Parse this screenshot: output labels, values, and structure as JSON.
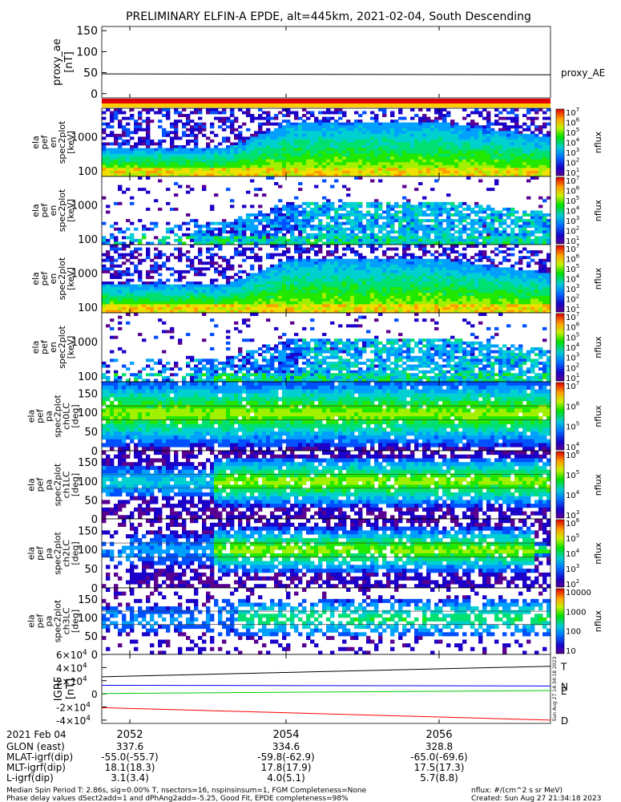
{
  "title": "PRELIMINARY ELFIN-A EPDE, alt=445km, 2021-02-04, South Descending",
  "chart_data": [
    {
      "type": "line",
      "panel": "proxy_ae",
      "ylabel": "proxy_ae [nT]",
      "yticks": [
        "150",
        "100",
        "50",
        "0"
      ],
      "ylim": [
        -10,
        160
      ],
      "series": [
        {
          "name": "proxy_AE",
          "x": [
            "20:51:00",
            "20:57:40"
          ],
          "values": [
            47,
            45
          ]
        }
      ]
    },
    {
      "type": "heatmap",
      "panel": "ela_pef_en_spec2plot_omni",
      "ylabel": [
        "ela",
        "pef",
        "en",
        "spec2plot",
        "[keV]"
      ],
      "yticks": [
        "1000",
        "100"
      ],
      "yscale": "log",
      "colorbar": {
        "label": "nflux",
        "ticks": [
          "10^7",
          "10^6",
          "10^5",
          "10^4",
          "10^3",
          "10^2",
          "10^1"
        ]
      }
    },
    {
      "type": "heatmap",
      "panel": "ela_pef_en_spec2plot_para",
      "ylabel": [
        "ela",
        "pef",
        "en",
        "spec2plot",
        "[keV]"
      ],
      "yticks": [
        "1000",
        "100"
      ],
      "yscale": "log",
      "colorbar": {
        "label": "nflux",
        "ticks": [
          "10^7",
          "10^6",
          "10^5",
          "10^4",
          "10^3",
          "10^2",
          "10^1"
        ]
      }
    },
    {
      "type": "heatmap",
      "panel": "ela_pef_en_spec2plot_perp",
      "ylabel": [
        "ela",
        "pef",
        "en",
        "spec2plot",
        "[keV]"
      ],
      "yticks": [
        "1000",
        "100"
      ],
      "yscale": "log",
      "colorbar": {
        "label": "nflux",
        "ticks": [
          "10^7",
          "10^6",
          "10^5",
          "10^4",
          "10^3",
          "10^2",
          "10^1"
        ]
      }
    },
    {
      "type": "heatmap",
      "panel": "ela_pef_en_spec2plot_anti",
      "ylabel": [
        "ela",
        "pef",
        "en",
        "spec2plot",
        "[keV]"
      ],
      "yticks": [
        "1000",
        "100"
      ],
      "yscale": "log",
      "colorbar": {
        "label": "nflux",
        "ticks": [
          "10^7",
          "10^6",
          "10^5",
          "10^4",
          "10^3",
          "10^2",
          "10^1"
        ]
      }
    },
    {
      "type": "heatmap",
      "panel": "ela_pef_pa_spec2plot_ch0LC",
      "ylabel": [
        "ela",
        "pef",
        "pa",
        "spec2plot",
        "ch0LC",
        "[deg]"
      ],
      "yticks": [
        "150",
        "100",
        "50",
        "0"
      ],
      "colorbar": {
        "label": "nflux",
        "ticks": [
          "10^7",
          "10^6",
          "10^5",
          "10^4"
        ]
      }
    },
    {
      "type": "heatmap",
      "panel": "ela_pef_pa_spec2plot_ch1LC",
      "ylabel": [
        "ela",
        "pef",
        "pa",
        "spec2plot",
        "ch1LC",
        "[deg]"
      ],
      "yticks": [
        "150",
        "100",
        "50",
        "0"
      ],
      "colorbar": {
        "label": "nflux",
        "ticks": [
          "10^6",
          "10^5",
          "10^4",
          "10^3"
        ]
      }
    },
    {
      "type": "heatmap",
      "panel": "ela_pef_pa_spec2plot_ch2LC",
      "ylabel": [
        "ela",
        "pef",
        "pa",
        "spec2plot",
        "ch2LC",
        "[deg]"
      ],
      "yticks": [
        "150",
        "100",
        "50",
        "0"
      ],
      "colorbar": {
        "label": "nflux",
        "ticks": [
          "10^6",
          "10^5",
          "10^4",
          "10^3",
          "10^2"
        ]
      }
    },
    {
      "type": "heatmap",
      "panel": "ela_pef_pa_spec2plot_ch3LC",
      "ylabel": [
        "ela",
        "pef",
        "pa",
        "spec2plot",
        "ch3LC",
        "[deg]"
      ],
      "yticks": [
        "150",
        "100",
        "50",
        "0"
      ],
      "colorbar": {
        "label": "nflux",
        "ticks": [
          "10000",
          "1000",
          "100",
          "10"
        ]
      }
    },
    {
      "type": "line",
      "panel": "IGRF",
      "ylabel": "IGRF [nT]",
      "yticks": [
        "6×10^4",
        "4×10^4",
        "2×10^4",
        "0",
        "-2×10^4",
        "-4×10^4"
      ],
      "ylim": [
        -45000,
        60000
      ],
      "series": [
        {
          "name": "T",
          "x": [
            "20:51:00",
            "20:57:40"
          ],
          "values": [
            26000,
            42000
          ]
        },
        {
          "name": "N",
          "x": [
            "20:51:00",
            "20:57:40"
          ],
          "values": [
            13000,
            12000
          ]
        },
        {
          "name": "E",
          "x": [
            "20:51:00",
            "20:57:40"
          ],
          "values": [
            500,
            5000
          ]
        },
        {
          "name": "D",
          "x": [
            "20:51:00",
            "20:57:40"
          ],
          "values": [
            -21000,
            -40000
          ]
        }
      ],
      "side_note": "Sun Aug 27 14:34:18 2023"
    }
  ],
  "xaxis": {
    "date_label": "2021 Feb 04",
    "ticks": [
      "2052",
      "2054",
      "2056"
    ],
    "rows": [
      {
        "label": "GLON (east)",
        "values": [
          "337.6",
          "334.6",
          "328.8"
        ]
      },
      {
        "label": "MLAT-igrf(dip)",
        "values": [
          "-55.0(-55.7)",
          "-59.8(-62.9)",
          "-65.0(-69.6)"
        ]
      },
      {
        "label": "MLT-igrf(dip)",
        "values": [
          "18.1(18.3)",
          "17.8(17.9)",
          "17.5(17.3)"
        ]
      },
      {
        "label": "L-igrf(dip)",
        "values": [
          "3.1(3.4)",
          "4.0(5.1)",
          "5.7(8.8)"
        ]
      }
    ]
  },
  "footer": {
    "line1": "Median Spin Period T: 2.86s, sig=0.00% T, nsectors=16, nspinsinsum=1, FGM Completeness=None",
    "line2": "Phase delay values dSect2add=1 and dPhAng2add=-5.25, Good Fit, EPDE completeness=98%",
    "units": "nflux: #/(cm^2 s sr MeV)",
    "created": "Created: Sun Aug 27 21:34:18 2023"
  },
  "colors": {
    "t": "#000000",
    "n": "#0000ff",
    "e": "#00cc00",
    "d": "#ff0000"
  }
}
